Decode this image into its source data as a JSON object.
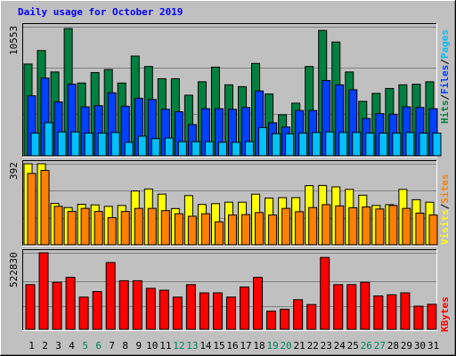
{
  "chart_data": [
    {
      "type": "bar",
      "panel": "hits-files-pages",
      "title": "Daily usage for October 2019",
      "ytick": "10553",
      "ymax": 10553,
      "categories": [
        "1",
        "2",
        "3",
        "4",
        "5",
        "6",
        "7",
        "8",
        "9",
        "10",
        "11",
        "12",
        "13",
        "14",
        "15",
        "16",
        "17",
        "18",
        "19",
        "20",
        "21",
        "22",
        "23",
        "24",
        "25",
        "26",
        "27",
        "28",
        "29",
        "30",
        "31"
      ],
      "weekend_days": [
        "5",
        "6",
        "12",
        "13",
        "19",
        "20",
        "26",
        "27"
      ],
      "legend": [
        {
          "text": "Hits",
          "color": "#008040"
        },
        {
          "text": "/",
          "color": "#000000"
        },
        {
          "text": "Files",
          "color": "#0040ff"
        },
        {
          "text": "/",
          "color": "#000000"
        },
        {
          "text": "Pages",
          "color": "#00c0ff"
        }
      ],
      "series": [
        {
          "name": "Hits",
          "color": "#008040",
          "values": [
            7500,
            8600,
            6850,
            10400,
            5950,
            6800,
            7050,
            5950,
            8150,
            7300,
            6300,
            6300,
            4950,
            6050,
            7250,
            5800,
            5650,
            7550,
            5050,
            3350,
            4300,
            7300,
            10250,
            9300,
            6850,
            4450,
            5100,
            5500,
            5800,
            5850,
            6050
          ]
        },
        {
          "name": "Files",
          "color": "#0040ff",
          "values": [
            4900,
            6350,
            4400,
            5850,
            4000,
            4100,
            5150,
            4050,
            4700,
            4600,
            3800,
            3600,
            2550,
            3850,
            3850,
            3800,
            3950,
            5300,
            2700,
            2350,
            3700,
            3700,
            6150,
            5800,
            5400,
            3050,
            3450,
            3400,
            4000,
            3950,
            3850
          ]
        },
        {
          "name": "Pages",
          "color": "#00c0ff",
          "values": [
            1850,
            2700,
            1950,
            1950,
            1850,
            1850,
            1900,
            1100,
            1600,
            1400,
            1450,
            1150,
            1150,
            1150,
            1100,
            1100,
            1150,
            2300,
            1800,
            1800,
            1850,
            1900,
            1950,
            1900,
            1900,
            1850,
            1850,
            1850,
            1900,
            1850,
            1850
          ]
        }
      ]
    },
    {
      "type": "bar",
      "panel": "visits-sites",
      "ytick": "392",
      "ymax": 392,
      "legend": [
        {
          "text": "Visits",
          "color": "#ffff00"
        },
        {
          "text": "/",
          "color": "#000000"
        },
        {
          "text": "Sites",
          "color": "#ff8000"
        }
      ],
      "series": [
        {
          "name": "Visits",
          "color": "#ffff00",
          "values": [
            392,
            392,
            200,
            180,
            196,
            193,
            186,
            190,
            260,
            270,
            245,
            175,
            238,
            195,
            199,
            206,
            206,
            245,
            226,
            228,
            228,
            286,
            287,
            280,
            268,
            240,
            190,
            194,
            268,
            218,
            206
          ]
        },
        {
          "name": "Sites",
          "color": "#ff8000",
          "values": [
            345,
            360,
            186,
            161,
            176,
            161,
            131,
            161,
            176,
            176,
            165,
            150,
            138,
            150,
            111,
            144,
            146,
            156,
            144,
            176,
            160,
            180,
            194,
            188,
            179,
            183,
            173,
            190,
            176,
            153,
            144
          ]
        }
      ]
    },
    {
      "type": "bar",
      "panel": "kbytes",
      "ytick": "522830",
      "ymax": 522830,
      "legend": [
        {
          "text": "KBytes",
          "color": "#ff0000"
        }
      ],
      "series": [
        {
          "name": "KBytes",
          "color": "#ff0000",
          "values": [
            305000,
            522830,
            321000,
            355000,
            220000,
            258000,
            456000,
            332000,
            332000,
            280000,
            267000,
            220000,
            305000,
            249000,
            249000,
            220000,
            289000,
            355000,
            124000,
            137000,
            202000,
            169000,
            491000,
            305000,
            305000,
            321000,
            228000,
            236000,
            249000,
            158000,
            171000
          ]
        }
      ]
    }
  ]
}
